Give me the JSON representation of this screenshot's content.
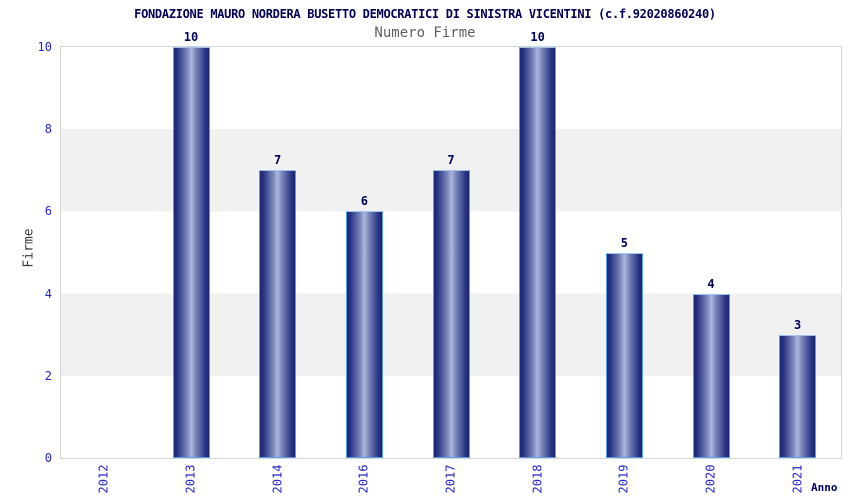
{
  "chart_data": {
    "type": "bar",
    "title": "FONDAZIONE MAURO NORDERA BUSETTO DEMOCRATICI DI SINISTRA VICENTINI (c.f.92020860240)",
    "subtitle": "Numero Firme",
    "xlabel": "Anno",
    "ylabel": "Firme",
    "categories": [
      "2012",
      "2013",
      "2014",
      "2016",
      "2017",
      "2018",
      "2019",
      "2020",
      "2021"
    ],
    "values": [
      0,
      10,
      7,
      6,
      7,
      10,
      5,
      4,
      3
    ],
    "ylim": [
      0,
      10
    ],
    "yticks": [
      0,
      2,
      4,
      6,
      8,
      10
    ],
    "value_labels_shown": true,
    "grid": "alternating horizontal gray bands every 2 units",
    "legend": "none",
    "x_tick_rotation": -90,
    "colors": {
      "bar_gradient_edge": "#1b266f",
      "bar_gradient_center": "#adb7dc",
      "bar_border": "#55a0e8",
      "tick_labels": "#2525cc",
      "value_labels": "#00005e",
      "title": "#000055",
      "subtitle": "#606060",
      "band_gray": "#f1f1f1",
      "plot_border": "#d6d6d6",
      "background": "#ffffff"
    }
  }
}
